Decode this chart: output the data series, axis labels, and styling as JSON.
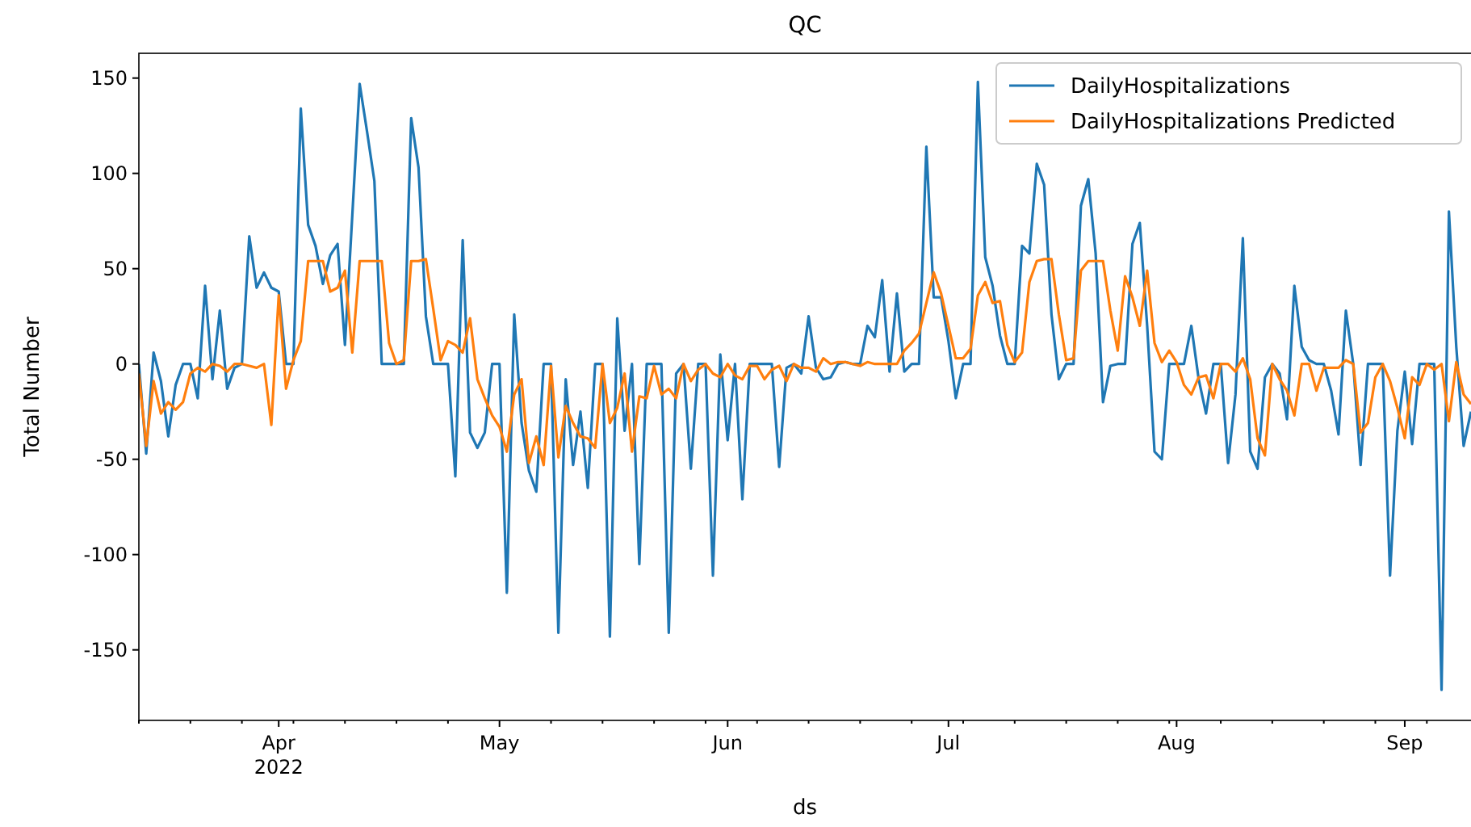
{
  "chart_data": {
    "type": "line",
    "title": "QC",
    "xlabel": "ds",
    "ylabel": "Total Number",
    "x": [
      "2022-03-13",
      "2022-03-14",
      "2022-03-15",
      "2022-03-16",
      "2022-03-17",
      "2022-03-18",
      "2022-03-19",
      "2022-03-20",
      "2022-03-21",
      "2022-03-22",
      "2022-03-23",
      "2022-03-24",
      "2022-03-25",
      "2022-03-26",
      "2022-03-27",
      "2022-03-28",
      "2022-03-29",
      "2022-03-30",
      "2022-03-31",
      "2022-04-01",
      "2022-04-02",
      "2022-04-03",
      "2022-04-04",
      "2022-04-05",
      "2022-04-06",
      "2022-04-07",
      "2022-04-08",
      "2022-04-09",
      "2022-04-10",
      "2022-04-11",
      "2022-04-12",
      "2022-04-13",
      "2022-04-14",
      "2022-04-15",
      "2022-04-16",
      "2022-04-17",
      "2022-04-18",
      "2022-04-19",
      "2022-04-20",
      "2022-04-21",
      "2022-04-22",
      "2022-04-23",
      "2022-04-24",
      "2022-04-25",
      "2022-04-26",
      "2022-04-27",
      "2022-04-28",
      "2022-04-29",
      "2022-04-30",
      "2022-05-01",
      "2022-05-02",
      "2022-05-03",
      "2022-05-04",
      "2022-05-05",
      "2022-05-06",
      "2022-05-07",
      "2022-05-08",
      "2022-05-09",
      "2022-05-10",
      "2022-05-11",
      "2022-05-12",
      "2022-05-13",
      "2022-05-14",
      "2022-05-15",
      "2022-05-16",
      "2022-05-17",
      "2022-05-18",
      "2022-05-19",
      "2022-05-20",
      "2022-05-21",
      "2022-05-22",
      "2022-05-23",
      "2022-05-24",
      "2022-05-25",
      "2022-05-26",
      "2022-05-27",
      "2022-05-28",
      "2022-05-29",
      "2022-05-30",
      "2022-05-31",
      "2022-06-01",
      "2022-06-02",
      "2022-06-03",
      "2022-06-04",
      "2022-06-05",
      "2022-06-06",
      "2022-06-07",
      "2022-06-08",
      "2022-06-09",
      "2022-06-10",
      "2022-06-11",
      "2022-06-12",
      "2022-06-13",
      "2022-06-14",
      "2022-06-15",
      "2022-06-16",
      "2022-06-17",
      "2022-06-18",
      "2022-06-19",
      "2022-06-20",
      "2022-06-21",
      "2022-06-22",
      "2022-06-23",
      "2022-06-24",
      "2022-06-25",
      "2022-06-26",
      "2022-06-27",
      "2022-06-28",
      "2022-06-29",
      "2022-06-30",
      "2022-07-01",
      "2022-07-02",
      "2022-07-03",
      "2022-07-04",
      "2022-07-05",
      "2022-07-06",
      "2022-07-07",
      "2022-07-08",
      "2022-07-09",
      "2022-07-10",
      "2022-07-11",
      "2022-07-12",
      "2022-07-13",
      "2022-07-14",
      "2022-07-15",
      "2022-07-16",
      "2022-07-17",
      "2022-07-18",
      "2022-07-19",
      "2022-07-20",
      "2022-07-21",
      "2022-07-22",
      "2022-07-23",
      "2022-07-24",
      "2022-07-25",
      "2022-07-26",
      "2022-07-27",
      "2022-07-28",
      "2022-07-29",
      "2022-07-30",
      "2022-07-31",
      "2022-08-01",
      "2022-08-02",
      "2022-08-03",
      "2022-08-04",
      "2022-08-05",
      "2022-08-06",
      "2022-08-07",
      "2022-08-08",
      "2022-08-09",
      "2022-08-10",
      "2022-08-11",
      "2022-08-12",
      "2022-08-13",
      "2022-08-14",
      "2022-08-15",
      "2022-08-16",
      "2022-08-17",
      "2022-08-18",
      "2022-08-19",
      "2022-08-20",
      "2022-08-21",
      "2022-08-22",
      "2022-08-23",
      "2022-08-24",
      "2022-08-25",
      "2022-08-26",
      "2022-08-27",
      "2022-08-28",
      "2022-08-29",
      "2022-08-30",
      "2022-08-31",
      "2022-09-01",
      "2022-09-02",
      "2022-09-03",
      "2022-09-04",
      "2022-09-05",
      "2022-09-06",
      "2022-09-07",
      "2022-09-08",
      "2022-09-09",
      "2022-09-10"
    ],
    "series": [
      {
        "name": "DailyHospitalizations",
        "color": "#1f77b4",
        "values": [
          0,
          -47,
          6,
          -9,
          -38,
          -11,
          0,
          0,
          -18,
          41,
          -8,
          28,
          -13,
          -2,
          0,
          67,
          40,
          48,
          40,
          38,
          0,
          0,
          134,
          73,
          62,
          42,
          57,
          63,
          10,
          78,
          147,
          122,
          96,
          0,
          0,
          0,
          0,
          129,
          103,
          25,
          0,
          0,
          0,
          -59,
          65,
          -36,
          -44,
          -36,
          0,
          0,
          -120,
          26,
          -31,
          -56,
          -67,
          0,
          0,
          -141,
          -8,
          -53,
          -25,
          -65,
          0,
          0,
          -143,
          24,
          -35,
          0,
          -105,
          0,
          0,
          0,
          -141,
          -5,
          0,
          -55,
          0,
          0,
          -111,
          5,
          -40,
          0,
          -71,
          0,
          0,
          0,
          0,
          -54,
          -2,
          0,
          -5,
          25,
          -2,
          -8,
          -7,
          0,
          1,
          0,
          0,
          20,
          14,
          44,
          -4,
          37,
          -4,
          0,
          0,
          114,
          35,
          35,
          12,
          -18,
          0,
          0,
          148,
          56,
          41,
          15,
          0,
          0,
          62,
          58,
          105,
          94,
          26,
          -8,
          0,
          0,
          83,
          97,
          58,
          -20,
          -1,
          0,
          0,
          63,
          74,
          20,
          -46,
          -50,
          0,
          0,
          0,
          20,
          -8,
          -26,
          0,
          0,
          -52,
          -16,
          66,
          -46,
          -55,
          -7,
          0,
          -5,
          -29,
          41,
          9,
          2,
          0,
          0,
          -14,
          -37,
          28,
          0,
          -53,
          0,
          0,
          0,
          -111,
          -35,
          -4,
          -42,
          0,
          0,
          0,
          -171,
          80,
          9,
          -43,
          -25
        ]
      },
      {
        "name": "DailyHospitalizations Predicted",
        "color": "#ff7f0e",
        "values": [
          -5,
          -43,
          -9,
          -26,
          -20,
          -24,
          -20,
          -5,
          -2,
          -4,
          0,
          -1,
          -4,
          0,
          0,
          -1,
          -2,
          0,
          -32,
          36,
          -13,
          2,
          12,
          54,
          54,
          54,
          38,
          40,
          49,
          6,
          54,
          54,
          54,
          54,
          11,
          0,
          2,
          54,
          54,
          55,
          29,
          2,
          12,
          10,
          6,
          24,
          -8,
          -18,
          -27,
          -33,
          -46,
          -16,
          -8,
          -52,
          -38,
          -53,
          -1,
          -49,
          -22,
          -31,
          -38,
          -39,
          -44,
          0,
          -31,
          -23,
          -5,
          -46,
          -17,
          -18,
          -1,
          -16,
          -13,
          -18,
          0,
          -9,
          -3,
          0,
          -5,
          -7,
          0,
          -6,
          -8,
          -1,
          -1,
          -8,
          -3,
          -1,
          -9,
          0,
          -2,
          -2,
          -4,
          3,
          0,
          1,
          1,
          0,
          -1,
          1,
          0,
          0,
          0,
          0,
          7,
          11,
          16,
          32,
          48,
          37,
          20,
          3,
          3,
          8,
          36,
          43,
          32,
          33,
          10,
          1,
          6,
          43,
          54,
          55,
          55,
          26,
          2,
          3,
          49,
          54,
          54,
          54,
          28,
          7,
          46,
          35,
          20,
          49,
          11,
          1,
          7,
          1,
          -11,
          -16,
          -7,
          -6,
          -18,
          0,
          0,
          -4,
          3,
          -8,
          -39,
          -48,
          0,
          -8,
          -14,
          -27,
          0,
          0,
          -14,
          -2,
          -2,
          -2,
          2,
          0,
          -36,
          -31,
          -7,
          0,
          -9,
          -23,
          -39,
          -7,
          -11,
          0,
          -3,
          0,
          -30,
          1,
          -16,
          -21
        ]
      }
    ],
    "xlim": [
      "2022-03-13",
      "2022-09-10"
    ],
    "xticks": [
      {
        "value": "2022-03-13",
        "label": null
      },
      {
        "value": "2022-03-20",
        "label": null
      },
      {
        "value": "2022-03-27",
        "label": null
      },
      {
        "value": "2022-04-01",
        "label": "Apr\n2022"
      },
      {
        "value": "2022-04-03",
        "label": null
      },
      {
        "value": "2022-04-10",
        "label": null
      },
      {
        "value": "2022-04-17",
        "label": null
      },
      {
        "value": "2022-04-24",
        "label": null
      },
      {
        "value": "2022-05-01",
        "label": "May"
      },
      {
        "value": "2022-05-08",
        "label": null
      },
      {
        "value": "2022-05-15",
        "label": null
      },
      {
        "value": "2022-05-22",
        "label": null
      },
      {
        "value": "2022-05-29",
        "label": null
      },
      {
        "value": "2022-06-01",
        "label": "Jun"
      },
      {
        "value": "2022-06-05",
        "label": null
      },
      {
        "value": "2022-06-12",
        "label": null
      },
      {
        "value": "2022-06-19",
        "label": null
      },
      {
        "value": "2022-06-26",
        "label": null
      },
      {
        "value": "2022-07-01",
        "label": "Jul"
      },
      {
        "value": "2022-07-03",
        "label": null
      },
      {
        "value": "2022-07-10",
        "label": null
      },
      {
        "value": "2022-07-17",
        "label": null
      },
      {
        "value": "2022-07-24",
        "label": null
      },
      {
        "value": "2022-07-31",
        "label": null
      },
      {
        "value": "2022-08-01",
        "label": "Aug"
      },
      {
        "value": "2022-08-07",
        "label": null
      },
      {
        "value": "2022-08-14",
        "label": null
      },
      {
        "value": "2022-08-21",
        "label": null
      },
      {
        "value": "2022-08-28",
        "label": null
      },
      {
        "value": "2022-09-01",
        "label": "Sep"
      },
      {
        "value": "2022-09-04",
        "label": null
      }
    ],
    "ylim": [
      -187,
      163
    ],
    "yticks": [
      -150,
      -100,
      -50,
      0,
      50,
      100,
      150
    ],
    "grid": false,
    "legend": "top right",
    "marker": "none",
    "line_style": "solid"
  }
}
